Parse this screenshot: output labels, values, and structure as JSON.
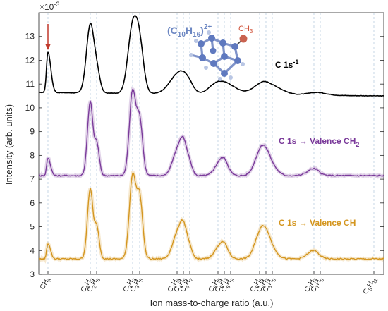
{
  "chart_data": {
    "type": "line",
    "xlabel": "Ion mass-to-charge ratio (a.u.)",
    "ylabel": "Intensity (arb. units)",
    "y_exponent": "×10",
    "y_exponent_power": "-3",
    "ylim": [
      3,
      14
    ],
    "yticks": [
      3,
      4,
      5,
      6,
      7,
      8,
      9,
      10,
      11,
      12,
      13
    ],
    "xlim": [
      10,
      170
    ],
    "grid": false,
    "fragments": [
      {
        "m": 15,
        "base": "CH",
        "sub": "3"
      },
      {
        "m": 27,
        "base": "C",
        "sub": "2",
        "base2": "H",
        "sub2": "3"
      },
      {
        "m": 29,
        "base": "C",
        "sub": "2",
        "base2": "H",
        "sub2": "5"
      },
      {
        "m": 39,
        "base": "C",
        "sub": "3",
        "base2": "H",
        "sub2": "3"
      },
      {
        "m": 41,
        "base": "C",
        "sub": "3",
        "base2": "H",
        "sub2": "5"
      },
      {
        "m": 51,
        "base": "C",
        "sub": "4",
        "base2": "H",
        "sub2": "3"
      },
      {
        "m": 53,
        "base": "C",
        "sub": "4",
        "base2": "H",
        "sub2": "5"
      },
      {
        "m": 55,
        "base": "C",
        "sub": "4",
        "base2": "H",
        "sub2": "7"
      },
      {
        "m": 65,
        "base": "C",
        "sub": "5",
        "base2": "H",
        "sub2": "5"
      },
      {
        "m": 67,
        "base": "C",
        "sub": "5",
        "base2": "H",
        "sub2": "7"
      },
      {
        "m": 69,
        "base": "C",
        "sub": "5",
        "base2": "H",
        "sub2": "9"
      },
      {
        "m": 77,
        "base": "C",
        "sub": "6",
        "base2": "H",
        "sub2": "5"
      },
      {
        "m": 79,
        "base": "C",
        "sub": "6",
        "base2": "H",
        "sub2": "7"
      },
      {
        "m": 81,
        "base": "C",
        "sub": "6",
        "base2": "H",
        "sub2": "9"
      },
      {
        "m": 91,
        "base": "C",
        "sub": "7",
        "base2": "H",
        "sub2": "7"
      },
      {
        "m": 93,
        "base": "C",
        "sub": "7",
        "base2": "H",
        "sub2": "9"
      },
      {
        "m": 107,
        "base": "C",
        "sub": "8",
        "base2": "H",
        "sub2": "11"
      }
    ],
    "series": [
      {
        "name": "C 1s",
        "name_sup": "-1",
        "color": "#000000",
        "baseline": 10.65,
        "peaks": [
          {
            "m": 15,
            "h": 1.7,
            "w": 0.8
          },
          {
            "m": 27,
            "h": 2.85,
            "w": 1.1
          },
          {
            "m": 29,
            "h": 0.9,
            "w": 0.9
          },
          {
            "m": 39,
            "h": 2.75,
            "w": 1.3
          },
          {
            "m": 41,
            "h": 1.8,
            "w": 1.1
          },
          {
            "m": 51,
            "h": 0.7,
            "w": 2.2
          },
          {
            "m": 54,
            "h": 0.55,
            "w": 2.0
          },
          {
            "m": 64,
            "h": 0.35,
            "w": 2.6
          },
          {
            "m": 68,
            "h": 0.38,
            "w": 2.8
          },
          {
            "m": 78,
            "h": 0.5,
            "w": 2.6
          },
          {
            "m": 82,
            "h": 0.2,
            "w": 2.4
          },
          {
            "m": 92,
            "h": 0.12,
            "w": 2.5
          }
        ]
      },
      {
        "name": "C 1s → Valence CH",
        "name_sub": "2",
        "color": "#7a3a9a",
        "baseline": 7.15,
        "peaks": [
          {
            "m": 15,
            "h": 0.75,
            "w": 0.7
          },
          {
            "m": 27,
            "h": 3.1,
            "w": 0.8
          },
          {
            "m": 29,
            "h": 1.35,
            "w": 0.7
          },
          {
            "m": 39,
            "h": 3.55,
            "w": 0.9
          },
          {
            "m": 41,
            "h": 2.3,
            "w": 0.8
          },
          {
            "m": 51,
            "h": 0.95,
            "w": 1.3
          },
          {
            "m": 53,
            "h": 1.25,
            "w": 1.1
          },
          {
            "m": 55,
            "h": 0.45,
            "w": 1.0
          },
          {
            "m": 65,
            "h": 0.4,
            "w": 1.6
          },
          {
            "m": 67,
            "h": 0.55,
            "w": 1.3
          },
          {
            "m": 77,
            "h": 0.85,
            "w": 1.5
          },
          {
            "m": 79,
            "h": 0.75,
            "w": 1.4
          },
          {
            "m": 81,
            "h": 0.3,
            "w": 1.3
          },
          {
            "m": 91,
            "h": 0.3,
            "w": 1.5
          }
        ]
      },
      {
        "name": "C 1s → Valence CH",
        "name_sub": "",
        "color": "#d4961f",
        "baseline": 3.65,
        "peaks": [
          {
            "m": 15,
            "h": 0.65,
            "w": 0.7
          },
          {
            "m": 27,
            "h": 2.95,
            "w": 0.8
          },
          {
            "m": 29,
            "h": 1.35,
            "w": 0.7
          },
          {
            "m": 39,
            "h": 3.5,
            "w": 0.9
          },
          {
            "m": 41,
            "h": 2.55,
            "w": 0.8
          },
          {
            "m": 51,
            "h": 0.95,
            "w": 1.3
          },
          {
            "m": 53,
            "h": 1.25,
            "w": 1.1
          },
          {
            "m": 55,
            "h": 0.4,
            "w": 1.0
          },
          {
            "m": 65,
            "h": 0.4,
            "w": 1.6
          },
          {
            "m": 67,
            "h": 0.5,
            "w": 1.3
          },
          {
            "m": 77,
            "h": 0.9,
            "w": 1.5
          },
          {
            "m": 79,
            "h": 0.85,
            "w": 1.4
          },
          {
            "m": 81,
            "h": 0.3,
            "w": 1.3
          },
          {
            "m": 91,
            "h": 0.35,
            "w": 1.5
          }
        ]
      }
    ],
    "annotations": {
      "molecule_formula": "(C",
      "molecule_sub1": "10",
      "molecule_mid": "H",
      "molecule_sub2": "16",
      "molecule_end": ")",
      "molecule_sup": "2+",
      "methyl_label": "CH",
      "methyl_sub": "3",
      "arrow_target": 15,
      "arrow_color": "#c0392b"
    }
  }
}
